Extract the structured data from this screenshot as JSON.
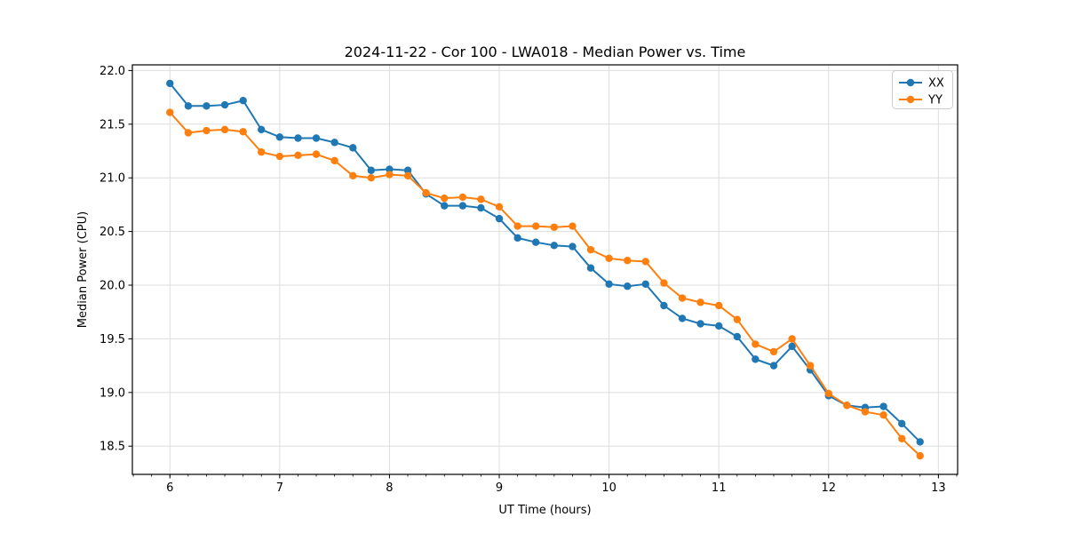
{
  "chart_data": {
    "type": "line",
    "title": "2024-11-22 - Cor 100 - LWA018 - Median Power vs. Time",
    "xlabel": "UT Time (hours)",
    "ylabel": "Median Power (CPU)",
    "xlim": [
      5.658,
      13.175
    ],
    "ylim": [
      18.237,
      22.053
    ],
    "xticks": [
      6,
      7,
      8,
      9,
      10,
      11,
      12,
      13
    ],
    "xtick_labels": [
      "6",
      "7",
      "8",
      "9",
      "10",
      "11",
      "12",
      "13"
    ],
    "yticks": [
      18.5,
      19.0,
      19.5,
      20.0,
      20.5,
      21.0,
      21.5,
      22.0
    ],
    "ytick_labels": [
      "18.5",
      "19.0",
      "19.5",
      "20.0",
      "20.5",
      "21.0",
      "21.5",
      "22.0"
    ],
    "x_minor_step": 0.1666667,
    "grid": true,
    "grid_color": "#dddddd",
    "spine_color": "#000000",
    "legend": {
      "position": "upper right",
      "entries": [
        "XX",
        "YY"
      ]
    },
    "x": [
      6.0,
      6.167,
      6.333,
      6.5,
      6.667,
      6.833,
      7.0,
      7.167,
      7.333,
      7.5,
      7.667,
      7.833,
      8.0,
      8.167,
      8.333,
      8.5,
      8.667,
      8.833,
      9.0,
      9.167,
      9.333,
      9.5,
      9.667,
      9.833,
      10.0,
      10.167,
      10.333,
      10.5,
      10.667,
      10.833,
      11.0,
      11.167,
      11.333,
      11.5,
      11.667,
      11.833,
      12.0,
      12.167,
      12.333,
      12.5,
      12.667,
      12.833
    ],
    "series": [
      {
        "name": "XX",
        "color": "#1f77b4",
        "values": [
          21.88,
          21.67,
          21.67,
          21.68,
          21.72,
          21.45,
          21.38,
          21.37,
          21.37,
          21.33,
          21.28,
          21.07,
          21.08,
          21.07,
          20.85,
          20.74,
          20.74,
          20.72,
          20.62,
          20.44,
          20.4,
          20.37,
          20.36,
          20.16,
          20.01,
          19.99,
          20.01,
          19.81,
          19.69,
          19.64,
          19.62,
          19.52,
          19.31,
          19.25,
          19.43,
          19.21,
          18.97,
          18.88,
          18.86,
          18.87,
          18.71,
          18.54
        ]
      },
      {
        "name": "YY",
        "color": "#ff7f0e",
        "values": [
          21.61,
          21.42,
          21.44,
          21.45,
          21.43,
          21.24,
          21.2,
          21.21,
          21.22,
          21.16,
          21.02,
          21.0,
          21.03,
          21.02,
          20.86,
          20.81,
          20.82,
          20.8,
          20.73,
          20.55,
          20.55,
          20.54,
          20.55,
          20.33,
          20.25,
          20.23,
          20.22,
          20.02,
          19.88,
          19.84,
          19.81,
          19.68,
          19.45,
          19.38,
          19.5,
          19.25,
          18.99,
          18.88,
          18.82,
          18.79,
          18.57,
          18.41
        ]
      }
    ]
  }
}
